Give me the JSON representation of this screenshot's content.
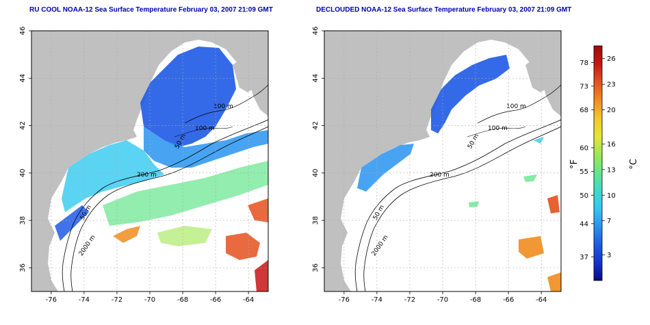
{
  "left_panel": {
    "title": "RU COOL NOAA-12 Sea Surface Temperature February 03, 2007 21:09 GMT",
    "contours": [
      "100 m",
      "100 m",
      "50 m",
      "200 m",
      "50 m",
      "2000 m"
    ]
  },
  "right_panel": {
    "title": "DECLOUDED NOAA-12 Sea Surface Temperature February 03, 2007 21:09 GMT",
    "contours": [
      "100 m",
      "100 m",
      "50 m",
      "200 m",
      "50 m",
      "2000 m"
    ]
  },
  "axes": {
    "x_ticks": [
      "-76",
      "-74",
      "-72",
      "-70",
      "-68",
      "-66",
      "-64"
    ],
    "y_ticks": [
      "46",
      "44",
      "42",
      "40",
      "38",
      "36"
    ],
    "xlim": [
      -77.2,
      -62.8
    ],
    "ylim": [
      35,
      46
    ],
    "grid": true
  },
  "colorbar": {
    "fahrenheit_label": "°F",
    "celsius_label": "°C",
    "fahrenheit_ticks": [
      "78",
      "73",
      "68",
      "60",
      "55",
      "50",
      "44",
      "37"
    ],
    "celsius_ticks": [
      "26",
      "23",
      "20",
      "16",
      "13",
      "10",
      "7",
      "3"
    ],
    "colors": [
      "#0a0a8c",
      "#1432d2",
      "#1e5ae6",
      "#2894f0",
      "#32c8f0",
      "#3cdcc8",
      "#64e68c",
      "#a0e650",
      "#e6e632",
      "#f0c828",
      "#f08c1e",
      "#e6501e",
      "#c81414",
      "#a00a0a"
    ]
  },
  "colors": {
    "land": "#c0c0c0",
    "ocean": "#ffffff",
    "title": "#0000a8"
  }
}
